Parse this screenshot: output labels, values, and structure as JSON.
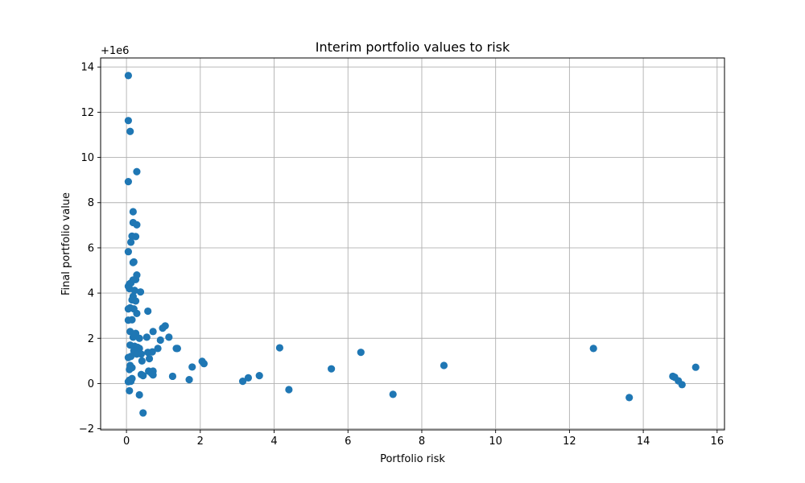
{
  "chart_data": {
    "type": "scatter",
    "title": "Interim portfolio values to risk",
    "xlabel": "Portfolio risk",
    "ylabel": "Final portfolio value",
    "offset_label": "+1e6",
    "xlim": [
      -0.7,
      16.2
    ],
    "ylim": [
      -2.05,
      14.4
    ],
    "xticks": [
      0,
      2,
      4,
      6,
      8,
      10,
      12,
      14,
      16
    ],
    "yticks": [
      -2,
      0,
      2,
      4,
      6,
      8,
      10,
      12,
      14
    ],
    "grid": true,
    "marker_color": "#1f77b4",
    "points": [
      [
        0.05,
        13.62
      ],
      [
        0.05,
        11.63
      ],
      [
        0.1,
        11.15
      ],
      [
        0.28,
        9.37
      ],
      [
        0.05,
        8.93
      ],
      [
        0.18,
        7.6
      ],
      [
        0.18,
        7.12
      ],
      [
        0.28,
        7.02
      ],
      [
        0.15,
        6.52
      ],
      [
        0.25,
        6.5
      ],
      [
        0.12,
        6.25
      ],
      [
        0.2,
        5.38
      ],
      [
        0.18,
        5.35
      ],
      [
        0.05,
        5.83
      ],
      [
        0.28,
        4.8
      ],
      [
        0.25,
        4.6
      ],
      [
        0.18,
        4.58
      ],
      [
        0.12,
        4.45
      ],
      [
        0.08,
        4.4
      ],
      [
        0.05,
        4.3
      ],
      [
        0.08,
        4.2
      ],
      [
        0.22,
        4.12
      ],
      [
        0.38,
        4.05
      ],
      [
        0.18,
        3.85
      ],
      [
        0.15,
        3.7
      ],
      [
        0.25,
        3.65
      ],
      [
        0.1,
        3.35
      ],
      [
        0.2,
        3.3
      ],
      [
        0.05,
        3.3
      ],
      [
        0.28,
        3.1
      ],
      [
        0.58,
        3.2
      ],
      [
        0.15,
        2.82
      ],
      [
        0.05,
        2.8
      ],
      [
        0.1,
        2.3
      ],
      [
        0.25,
        2.22
      ],
      [
        0.72,
        2.3
      ],
      [
        0.98,
        2.45
      ],
      [
        1.05,
        2.55
      ],
      [
        0.18,
        2.05
      ],
      [
        0.35,
        2.0
      ],
      [
        0.55,
        2.05
      ],
      [
        1.15,
        2.05
      ],
      [
        0.92,
        1.92
      ],
      [
        0.1,
        1.7
      ],
      [
        0.22,
        1.65
      ],
      [
        0.3,
        1.6
      ],
      [
        0.35,
        1.55
      ],
      [
        0.2,
        1.45
      ],
      [
        0.28,
        1.3
      ],
      [
        0.4,
        1.3
      ],
      [
        0.58,
        1.38
      ],
      [
        0.7,
        1.4
      ],
      [
        0.85,
        1.55
      ],
      [
        1.35,
        1.55
      ],
      [
        1.38,
        1.55
      ],
      [
        0.05,
        1.15
      ],
      [
        0.12,
        1.2
      ],
      [
        0.42,
        1.0
      ],
      [
        0.62,
        1.1
      ],
      [
        0.1,
        0.8
      ],
      [
        0.15,
        0.7
      ],
      [
        0.08,
        0.62
      ],
      [
        0.6,
        0.55
      ],
      [
        0.72,
        0.55
      ],
      [
        0.68,
        0.45
      ],
      [
        0.72,
        0.38
      ],
      [
        0.4,
        0.4
      ],
      [
        0.45,
        0.35
      ],
      [
        0.15,
        0.22
      ],
      [
        0.08,
        0.15
      ],
      [
        0.05,
        0.08
      ],
      [
        0.12,
        0.1
      ],
      [
        1.25,
        0.32
      ],
      [
        1.7,
        0.17
      ],
      [
        1.78,
        0.73
      ],
      [
        2.05,
        0.98
      ],
      [
        2.1,
        0.88
      ],
      [
        0.08,
        -0.32
      ],
      [
        0.35,
        -0.5
      ],
      [
        0.45,
        -1.3
      ],
      [
        3.15,
        0.1
      ],
      [
        3.3,
        0.25
      ],
      [
        3.6,
        0.35
      ],
      [
        4.15,
        1.58
      ],
      [
        4.4,
        -0.27
      ],
      [
        5.55,
        0.65
      ],
      [
        6.35,
        1.38
      ],
      [
        7.22,
        -0.48
      ],
      [
        8.6,
        0.8
      ],
      [
        12.65,
        1.55
      ],
      [
        13.62,
        -0.62
      ],
      [
        14.8,
        0.32
      ],
      [
        14.85,
        0.28
      ],
      [
        14.95,
        0.12
      ],
      [
        15.05,
        -0.05
      ],
      [
        15.42,
        0.72
      ]
    ]
  }
}
